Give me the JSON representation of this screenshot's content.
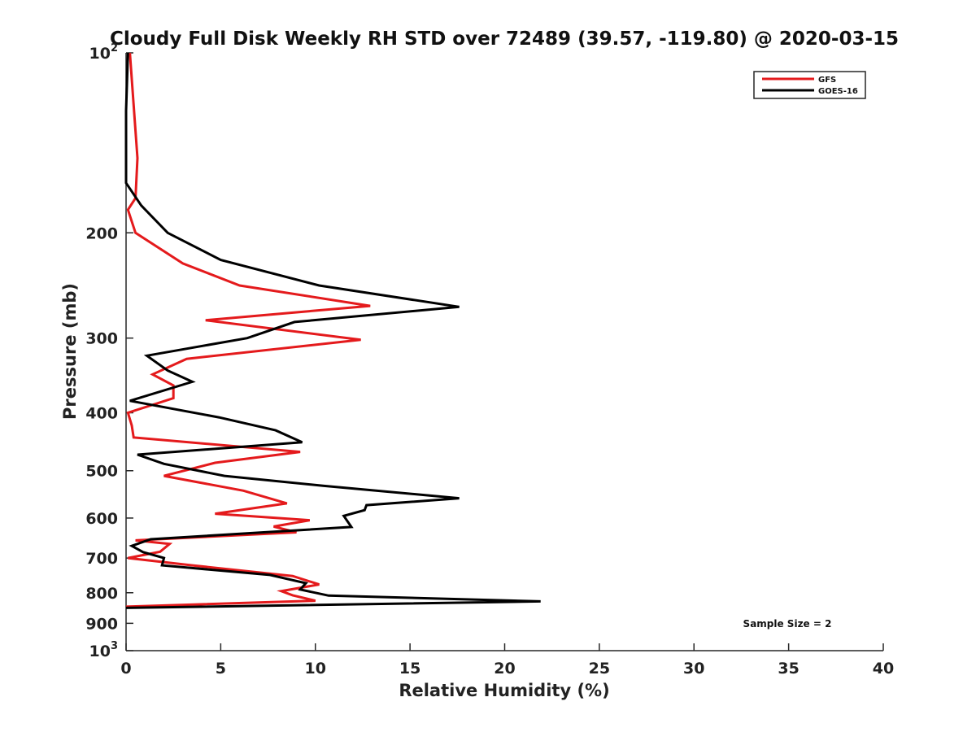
{
  "chart_data": {
    "type": "line",
    "title": "Cloudy Full Disk Weekly RH STD over 72489 (39.57, -119.80) @ 2020-03-15",
    "xlabel": "Relative Humidity (%)",
    "ylabel": "Pressure (mb)",
    "xlim": [
      0,
      40
    ],
    "ylim": [
      100,
      1000
    ],
    "y_scale": "log",
    "y_reversed": true,
    "grid": false,
    "x_ticks": [
      "0",
      "5",
      "10",
      "15",
      "20",
      "25",
      "30",
      "35",
      "40"
    ],
    "x_tick_values": [
      0,
      5,
      10,
      15,
      20,
      25,
      30,
      35,
      40
    ],
    "y_ticks": [
      {
        "value": 100,
        "base": "10",
        "exp": "2"
      },
      {
        "value": 200,
        "text": "200"
      },
      {
        "value": 300,
        "text": "300"
      },
      {
        "value": 400,
        "text": "400"
      },
      {
        "value": 500,
        "text": "500"
      },
      {
        "value": 600,
        "text": "600"
      },
      {
        "value": 700,
        "text": "700"
      },
      {
        "value": 800,
        "text": "800"
      },
      {
        "value": 900,
        "text": "900"
      },
      {
        "value": 1000,
        "base": "10",
        "exp": "3"
      }
    ],
    "legend_position": "top-right",
    "annotation": "Sample Size = 2",
    "series": [
      {
        "name": "GFS",
        "color": "#e41a1c",
        "points": [
          [
            0.2,
            100
          ],
          [
            0.6,
            150
          ],
          [
            0.5,
            175
          ],
          [
            0.1,
            183
          ],
          [
            0.5,
            200
          ],
          [
            3.0,
            225
          ],
          [
            6.0,
            245
          ],
          [
            12.9,
            265
          ],
          [
            4.2,
            280
          ],
          [
            12.4,
            302
          ],
          [
            3.2,
            325
          ],
          [
            1.4,
            345
          ],
          [
            2.5,
            360
          ],
          [
            2.5,
            378
          ],
          [
            0.1,
            400
          ],
          [
            0.3,
            420
          ],
          [
            0.4,
            440
          ],
          [
            9.2,
            465
          ],
          [
            4.7,
            485
          ],
          [
            2.0,
            510
          ],
          [
            6.2,
            540
          ],
          [
            8.5,
            567
          ],
          [
            4.7,
            590
          ],
          [
            9.7,
            605
          ],
          [
            7.8,
            620
          ],
          [
            9.0,
            634
          ],
          [
            0.5,
            654
          ],
          [
            2.3,
            663
          ],
          [
            1.8,
            683
          ],
          [
            0.1,
            700
          ],
          [
            3.5,
            720
          ],
          [
            8.8,
            750
          ],
          [
            10.2,
            775
          ],
          [
            8.2,
            795
          ],
          [
            8.8,
            808
          ],
          [
            10.0,
            825
          ],
          [
            0.0,
            844
          ]
        ]
      },
      {
        "name": "GOES-16",
        "color": "#000000",
        "points": [
          [
            0.1,
            100
          ],
          [
            0.0,
            125
          ],
          [
            0.0,
            165
          ],
          [
            0.8,
            180
          ],
          [
            2.2,
            200
          ],
          [
            5.0,
            222
          ],
          [
            10.2,
            245
          ],
          [
            17.6,
            266
          ],
          [
            8.9,
            282
          ],
          [
            6.4,
            300
          ],
          [
            1.1,
            321
          ],
          [
            2.2,
            340
          ],
          [
            3.5,
            355
          ],
          [
            0.2,
            382
          ],
          [
            4.9,
            407
          ],
          [
            7.9,
            428
          ],
          [
            9.3,
            448
          ],
          [
            0.6,
            470
          ],
          [
            2.0,
            487
          ],
          [
            5.2,
            510
          ],
          [
            10.4,
            530
          ],
          [
            17.6,
            556
          ],
          [
            12.7,
            571
          ],
          [
            12.6,
            582
          ],
          [
            11.5,
            595
          ],
          [
            11.9,
            621
          ],
          [
            1.3,
            651
          ],
          [
            0.3,
            668
          ],
          [
            0.9,
            684
          ],
          [
            2.0,
            700
          ],
          [
            1.9,
            720
          ],
          [
            7.6,
            747
          ],
          [
            9.5,
            771
          ],
          [
            9.2,
            790
          ],
          [
            10.7,
            809
          ],
          [
            21.9,
            827
          ],
          [
            0.0,
            848
          ]
        ]
      }
    ]
  }
}
